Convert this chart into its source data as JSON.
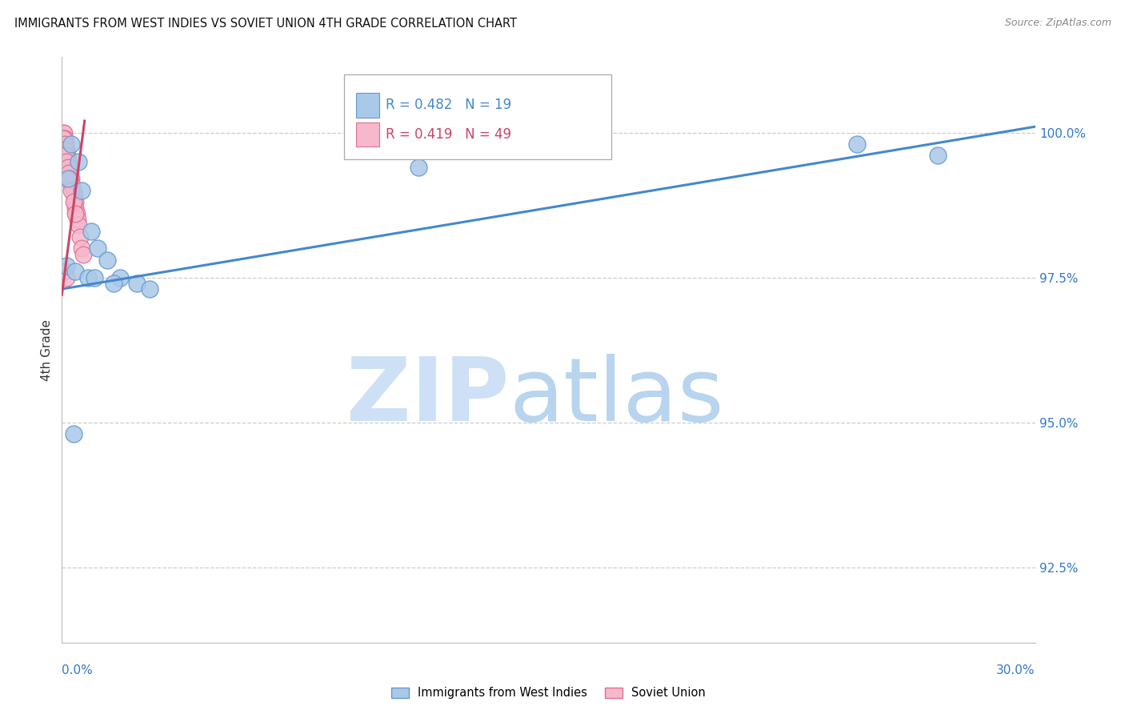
{
  "title": "IMMIGRANTS FROM WEST INDIES VS SOVIET UNION 4TH GRADE CORRELATION CHART",
  "source": "Source: ZipAtlas.com",
  "ylabel": "4th Grade",
  "xlim": [
    0.0,
    30.0
  ],
  "ylim": [
    91.2,
    101.3
  ],
  "ytick_values": [
    100.0,
    97.5,
    95.0,
    92.5
  ],
  "west_indies_R": 0.482,
  "west_indies_N": 19,
  "soviet_union_R": 0.419,
  "soviet_union_N": 49,
  "wi_color": "#aac8e8",
  "wi_edge_color": "#6699cc",
  "su_color": "#f5b8cc",
  "su_edge_color": "#e07090",
  "blue_line_color": "#4488cc",
  "pink_line_color": "#cc4466",
  "watermark_zip_color": "#cde0f5",
  "watermark_atlas_color": "#b8d4ee",
  "west_indies_x": [
    0.3,
    0.5,
    0.9,
    1.1,
    1.4,
    1.8,
    2.3,
    2.7,
    0.2,
    0.6,
    11.0,
    24.5,
    27.0,
    0.15,
    0.4,
    0.8,
    1.0,
    1.6,
    0.35
  ],
  "west_indies_y": [
    99.8,
    99.5,
    98.3,
    98.0,
    97.8,
    97.5,
    97.4,
    97.3,
    99.2,
    99.0,
    99.4,
    99.8,
    99.6,
    97.7,
    97.6,
    97.5,
    97.5,
    97.4,
    94.8
  ],
  "soviet_union_x": [
    0.04,
    0.06,
    0.07,
    0.08,
    0.09,
    0.1,
    0.11,
    0.12,
    0.13,
    0.14,
    0.15,
    0.16,
    0.17,
    0.18,
    0.19,
    0.2,
    0.21,
    0.22,
    0.23,
    0.24,
    0.25,
    0.26,
    0.27,
    0.28,
    0.3,
    0.32,
    0.35,
    0.38,
    0.4,
    0.42,
    0.45,
    0.48,
    0.5,
    0.55,
    0.6,
    0.65,
    0.05,
    0.08,
    0.1,
    0.12,
    0.15,
    0.18,
    0.22,
    0.25,
    0.3,
    0.35,
    0.4,
    0.1,
    0.15
  ],
  "soviet_union_y": [
    100.0,
    100.0,
    99.9,
    99.9,
    99.8,
    99.8,
    99.8,
    99.7,
    99.7,
    99.7,
    99.6,
    99.6,
    99.6,
    99.5,
    99.5,
    99.5,
    99.4,
    99.4,
    99.4,
    99.3,
    99.3,
    99.3,
    99.2,
    99.2,
    99.1,
    99.1,
    99.0,
    98.9,
    98.8,
    98.7,
    98.6,
    98.5,
    98.4,
    98.2,
    98.0,
    97.9,
    99.9,
    99.8,
    99.7,
    99.6,
    99.5,
    99.4,
    99.3,
    99.2,
    99.0,
    98.8,
    98.6,
    97.6,
    97.5
  ],
  "blue_line_x": [
    0.0,
    30.0
  ],
  "blue_line_y": [
    97.3,
    100.1
  ],
  "pink_line_x": [
    0.0,
    0.7
  ],
  "pink_line_y": [
    97.2,
    100.2
  ]
}
